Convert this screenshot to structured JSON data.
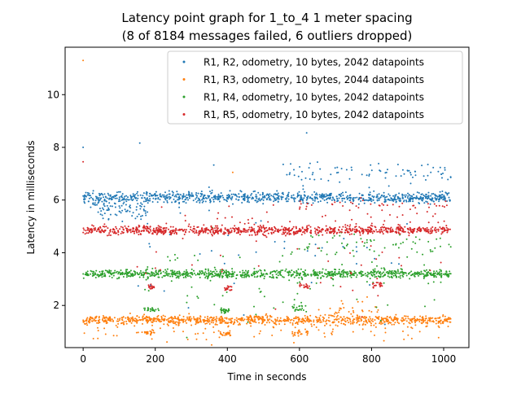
{
  "chart_data": {
    "type": "scatter",
    "title": "Latency point graph for 1_to_4 1 meter spacing",
    "subtitle": "(8 of 8184 messages failed, 6 outliers dropped)",
    "xlabel": "Time in seconds",
    "ylabel": "Latency in milliseconds",
    "xlim": [
      -50,
      1070
    ],
    "ylim": [
      0.4,
      11.8
    ],
    "xticks": [
      0,
      200,
      400,
      600,
      800,
      1000
    ],
    "yticks": [
      2,
      4,
      6,
      8,
      10
    ],
    "grid": false,
    "legend_position": "top-right",
    "series": [
      {
        "name": "R1, R2, odometry, 10 bytes, 2042 datapoints",
        "color": "#1f77b4",
        "x_range": [
          0,
          1020
        ],
        "bands": [
          {
            "x": [
              0,
              1020
            ],
            "y": 6.1,
            "spread": 0.1,
            "weight": 0.8
          },
          {
            "x": [
              20,
              180
            ],
            "y": 5.7,
            "spread": 0.25,
            "weight": 0.08
          },
          {
            "x": [
              560,
              1020
            ],
            "y": 7.05,
            "spread": 0.2,
            "weight": 0.07
          },
          {
            "x": [
              150,
              900
            ],
            "y": 4.5,
            "spread": 1.6,
            "weight": 0.05
          }
        ],
        "outliers": [
          [
            0,
            8.0
          ],
          [
            620,
            8.55
          ],
          [
            555,
            7.35
          ]
        ]
      },
      {
        "name": "R1, R3, odometry, 10 bytes, 2044 datapoints",
        "color": "#ff7f0e",
        "x_range": [
          0,
          1020
        ],
        "bands": [
          {
            "x": [
              0,
              1020
            ],
            "y": 1.45,
            "spread": 0.08,
            "weight": 0.78
          },
          {
            "x": [
              0,
              1020
            ],
            "y": 1.15,
            "spread": 0.25,
            "weight": 0.12
          },
          {
            "x": [
              170,
              200
            ],
            "y": 0.95,
            "spread": 0.05,
            "weight": 0.02
          },
          {
            "x": [
              380,
              410
            ],
            "y": 0.95,
            "spread": 0.05,
            "weight": 0.02
          },
          {
            "x": [
              580,
              630
            ],
            "y": 0.95,
            "spread": 0.05,
            "weight": 0.02
          },
          {
            "x": [
              680,
              820
            ],
            "y": 1.7,
            "spread": 0.3,
            "weight": 0.04
          }
        ],
        "outliers": [
          [
            0,
            11.3
          ],
          [
            415,
            7.05
          ]
        ]
      },
      {
        "name": "R1, R4, odometry, 10 bytes, 2042 datapoints",
        "color": "#2ca02c",
        "x_range": [
          0,
          1020
        ],
        "bands": [
          {
            "x": [
              0,
              1020
            ],
            "y": 3.2,
            "spread": 0.08,
            "weight": 0.8
          },
          {
            "x": [
              570,
              1020
            ],
            "y": 4.3,
            "spread": 0.2,
            "weight": 0.06
          },
          {
            "x": [
              170,
              210
            ],
            "y": 1.85,
            "spread": 0.05,
            "weight": 0.02
          },
          {
            "x": [
              380,
              410
            ],
            "y": 1.8,
            "spread": 0.05,
            "weight": 0.02
          },
          {
            "x": [
              580,
              620
            ],
            "y": 1.9,
            "spread": 0.1,
            "weight": 0.02
          },
          {
            "x": [
              150,
              1020
            ],
            "y": 3.0,
            "spread": 0.8,
            "weight": 0.08
          }
        ],
        "outliers": []
      },
      {
        "name": "R1, R5, odometry, 10 bytes, 2042 datapoints",
        "color": "#d62728",
        "x_range": [
          0,
          1020
        ],
        "bands": [
          {
            "x": [
              0,
              1020
            ],
            "y": 4.85,
            "spread": 0.08,
            "weight": 0.8
          },
          {
            "x": [
              200,
              1020
            ],
            "y": 5.15,
            "spread": 0.25,
            "weight": 0.06
          },
          {
            "x": [
              600,
              1020
            ],
            "y": 5.8,
            "spread": 0.1,
            "weight": 0.04
          },
          {
            "x": [
              180,
              200
            ],
            "y": 2.7,
            "spread": 0.05,
            "weight": 0.015
          },
          {
            "x": [
              390,
              415
            ],
            "y": 2.65,
            "spread": 0.05,
            "weight": 0.015
          },
          {
            "x": [
              600,
              630
            ],
            "y": 2.75,
            "spread": 0.05,
            "weight": 0.015
          },
          {
            "x": [
              800,
              830
            ],
            "y": 2.8,
            "spread": 0.05,
            "weight": 0.015
          },
          {
            "x": [
              150,
              1020
            ],
            "y": 4.0,
            "spread": 1.0,
            "weight": 0.04
          }
        ],
        "outliers": [
          [
            0,
            7.45
          ]
        ]
      }
    ]
  }
}
